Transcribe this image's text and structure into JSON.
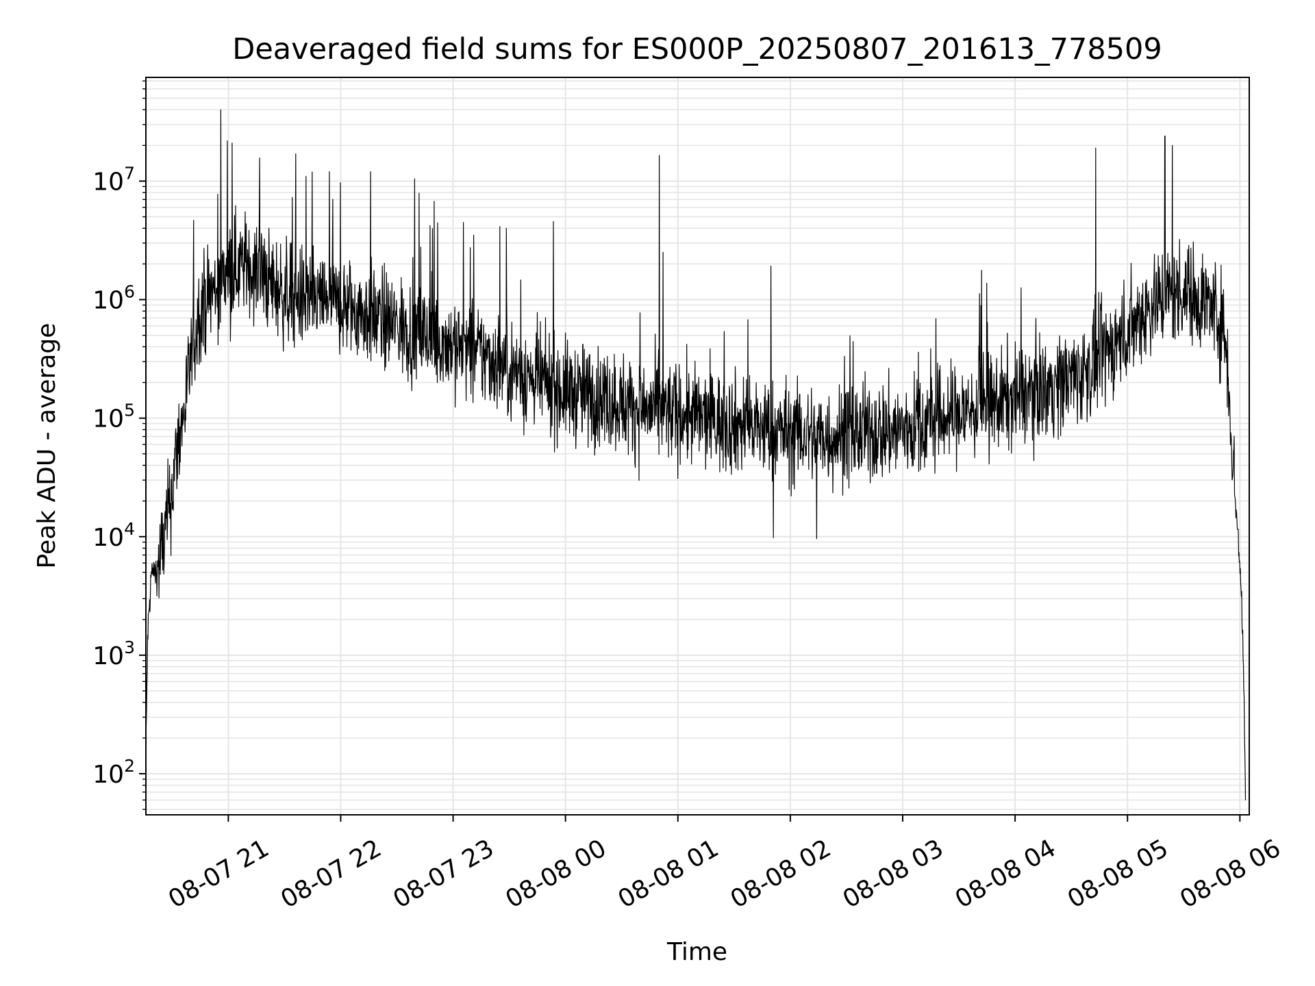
{
  "chart_data": {
    "type": "line",
    "title": "Deaveraged field sums for ES000P_20250807_201613_778509",
    "xlabel": "Time",
    "ylabel": "Peak ADU - average",
    "x_scale": "time",
    "y_scale": "log",
    "xlim": [
      "2025-08-07 20:16",
      "2025-08-08 06:05"
    ],
    "ylim": [
      45,
      75000000
    ],
    "grid": true,
    "line_color": "#000000",
    "grid_color": "#e5e5e5",
    "x_ticks": [
      {
        "value": "2025-08-07 21:00",
        "label": "08-07 21"
      },
      {
        "value": "2025-08-07 22:00",
        "label": "08-07 22"
      },
      {
        "value": "2025-08-07 23:00",
        "label": "08-07 23"
      },
      {
        "value": "2025-08-08 00:00",
        "label": "08-08 00"
      },
      {
        "value": "2025-08-08 01:00",
        "label": "08-08 01"
      },
      {
        "value": "2025-08-08 02:00",
        "label": "08-08 02"
      },
      {
        "value": "2025-08-08 03:00",
        "label": "08-08 03"
      },
      {
        "value": "2025-08-08 04:00",
        "label": "08-08 04"
      },
      {
        "value": "2025-08-08 05:00",
        "label": "08-08 05"
      },
      {
        "value": "2025-08-08 06:00",
        "label": "08-08 06"
      }
    ],
    "y_ticks": [
      {
        "value": 100,
        "base": "10",
        "exp": "2"
      },
      {
        "value": 1000,
        "base": "10",
        "exp": "3"
      },
      {
        "value": 10000,
        "base": "10",
        "exp": "4"
      },
      {
        "value": 100000,
        "base": "10",
        "exp": "5"
      },
      {
        "value": 1000000,
        "base": "10",
        "exp": "6"
      },
      {
        "value": 10000000,
        "base": "10",
        "exp": "7"
      }
    ],
    "series": [
      {
        "x": [
          "2025-08-07 20:16",
          "2025-08-07 20:17",
          "2025-08-07 20:19",
          "2025-08-07 20:22",
          "2025-08-07 20:26",
          "2025-08-07 20:30",
          "2025-08-07 20:33",
          "2025-08-07 20:36",
          "2025-08-07 20:40",
          "2025-08-07 20:45",
          "2025-08-07 20:50",
          "2025-08-07 20:55",
          "2025-08-07 21:00",
          "2025-08-07 21:10",
          "2025-08-07 21:20",
          "2025-08-07 21:30",
          "2025-08-07 21:45",
          "2025-08-07 22:00",
          "2025-08-07 22:15",
          "2025-08-07 22:30",
          "2025-08-07 22:45",
          "2025-08-07 23:00",
          "2025-08-07 23:20",
          "2025-08-07 23:40",
          "2025-08-08 00:00",
          "2025-08-08 00:20",
          "2025-08-08 00:40",
          "2025-08-08 01:00",
          "2025-08-08 01:20",
          "2025-08-08 01:40",
          "2025-08-08 02:00",
          "2025-08-08 02:20",
          "2025-08-08 02:40",
          "2025-08-08 03:00",
          "2025-08-08 03:20",
          "2025-08-08 03:40",
          "2025-08-08 04:00",
          "2025-08-08 04:20",
          "2025-08-08 04:40",
          "2025-08-08 05:00",
          "2025-08-08 05:15",
          "2025-08-08 05:30",
          "2025-08-08 05:45",
          "2025-08-08 05:50",
          "2025-08-08 05:53",
          "2025-08-08 05:56",
          "2025-08-08 05:59",
          "2025-08-08 06:01",
          "2025-08-08 06:02",
          "2025-08-08 06:03"
        ],
        "y": [
          150,
          1500,
          5000,
          5000,
          10000,
          25000,
          60000,
          100000,
          300000,
          900000,
          1100000,
          1300000,
          1800000,
          2000000,
          1500000,
          1100000,
          1000000,
          900000,
          750000,
          600000,
          500000,
          420000,
          320000,
          220000,
          170000,
          150000,
          120000,
          110000,
          95000,
          85000,
          75000,
          70000,
          75000,
          80000,
          100000,
          120000,
          150000,
          190000,
          260000,
          550000,
          1000000,
          1200000,
          900000,
          650000,
          400000,
          50000,
          10000,
          3000,
          700,
          60
        ],
        "spikes": [
          {
            "x": "2025-08-07 20:56",
            "y": 40000000
          },
          {
            "x": "2025-08-07 21:02",
            "y": 21000000
          },
          {
            "x": "2025-08-07 21:36",
            "y": 17000000
          },
          {
            "x": "2025-08-07 21:54",
            "y": 12000000
          },
          {
            "x": "2025-08-07 22:16",
            "y": 12000000
          },
          {
            "x": "2025-08-08 00:50",
            "y": 16500000
          },
          {
            "x": "2025-08-08 04:43",
            "y": 19000000
          },
          {
            "x": "2025-08-08 05:20",
            "y": 24000000
          },
          {
            "x": "2025-08-08 05:24",
            "y": 20000000
          },
          {
            "x": "2025-08-08 01:51",
            "y": 9800
          },
          {
            "x": "2025-08-08 02:14",
            "y": 9600
          }
        ]
      }
    ]
  }
}
